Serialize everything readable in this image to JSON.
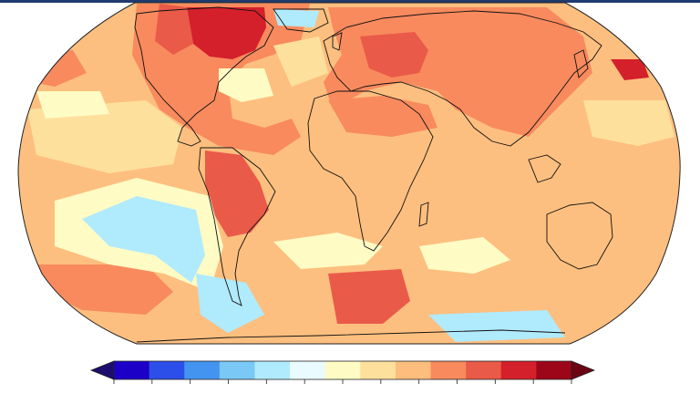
{
  "top_bar_color": "#1f3a6e",
  "map": {
    "projection": "robinson",
    "ocean_base_color": "#fdbf7f",
    "coastline_color": "#111111",
    "border_color": "#333333"
  },
  "colorbar": {
    "extend": "both",
    "tick_count": 13,
    "colors": [
      "#1c00c8",
      "#2b4fe8",
      "#4294f0",
      "#79c8f5",
      "#b0eafd",
      "#e9fbff",
      "#fffbc4",
      "#fee09d",
      "#fdbd7d",
      "#f88a5e",
      "#ea5a48",
      "#d4202a",
      "#9d0618"
    ],
    "low_color": "#1c0d6e",
    "high_color": "#6d0414"
  }
}
